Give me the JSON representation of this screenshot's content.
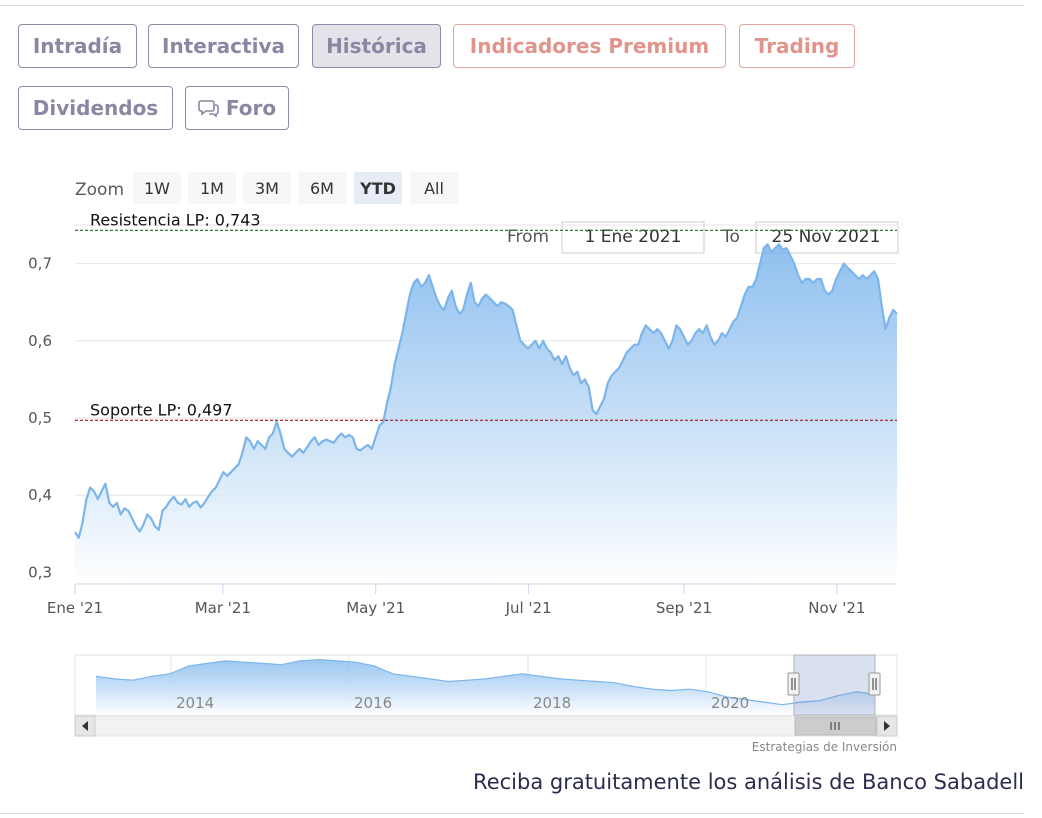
{
  "tabs": [
    {
      "label": "Intradía",
      "state": "normal"
    },
    {
      "label": "Interactiva",
      "state": "normal"
    },
    {
      "label": "Histórica",
      "state": "active"
    },
    {
      "label": "Indicadores Premium",
      "state": "premium"
    },
    {
      "label": "Trading",
      "state": "premium"
    },
    {
      "label": "Dividendos",
      "state": "normal"
    },
    {
      "label": "Foro",
      "state": "normal",
      "icon": "chat-bubbles-icon"
    }
  ],
  "range_selector": {
    "zoom_label": "Zoom",
    "buttons": [
      "1W",
      "1M",
      "3M",
      "6M",
      "YTD",
      "All"
    ],
    "selected": "YTD",
    "from_label": "From",
    "from_value": "1 Ene 2021",
    "to_label": "To",
    "to_value": "25 Nov 2021"
  },
  "chart_data": {
    "type": "area",
    "series": [
      {
        "x_start": "2021-01-01",
        "x_end": "2021-11-25",
        "values": [
          0.352,
          0.345,
          0.365,
          0.395,
          0.41,
          0.405,
          0.395,
          0.405,
          0.415,
          0.39,
          0.385,
          0.39,
          0.375,
          0.383,
          0.38,
          0.37,
          0.36,
          0.353,
          0.362,
          0.375,
          0.37,
          0.36,
          0.355,
          0.38,
          0.385,
          0.393,
          0.398,
          0.39,
          0.388,
          0.395,
          0.385,
          0.39,
          0.392,
          0.384,
          0.39,
          0.398,
          0.405,
          0.41,
          0.42,
          0.43,
          0.425,
          0.43,
          0.435,
          0.44,
          0.455,
          0.475,
          0.47,
          0.46,
          0.47,
          0.465,
          0.46,
          0.475,
          0.48,
          0.495,
          0.48,
          0.46,
          0.455,
          0.45,
          0.455,
          0.46,
          0.455,
          0.462,
          0.47,
          0.475,
          0.465,
          0.47,
          0.472,
          0.47,
          0.468,
          0.475,
          0.48,
          0.475,
          0.478,
          0.475,
          0.46,
          0.458,
          0.462,
          0.465,
          0.46,
          0.475,
          0.49,
          0.495,
          0.52,
          0.54,
          0.57,
          0.59,
          0.61,
          0.635,
          0.66,
          0.675,
          0.68,
          0.67,
          0.675,
          0.685,
          0.67,
          0.655,
          0.645,
          0.64,
          0.655,
          0.665,
          0.645,
          0.635,
          0.64,
          0.66,
          0.675,
          0.65,
          0.645,
          0.655,
          0.66,
          0.655,
          0.65,
          0.645,
          0.65,
          0.648,
          0.645,
          0.64,
          0.62,
          0.6,
          0.595,
          0.59,
          0.595,
          0.6,
          0.59,
          0.6,
          0.59,
          0.585,
          0.575,
          0.58,
          0.57,
          0.58,
          0.565,
          0.555,
          0.56,
          0.545,
          0.55,
          0.54,
          0.51,
          0.505,
          0.515,
          0.525,
          0.545,
          0.555,
          0.56,
          0.565,
          0.575,
          0.585,
          0.59,
          0.595,
          0.595,
          0.61,
          0.62,
          0.615,
          0.61,
          0.615,
          0.61,
          0.6,
          0.59,
          0.6,
          0.62,
          0.615,
          0.605,
          0.595,
          0.6,
          0.61,
          0.615,
          0.61,
          0.62,
          0.605,
          0.595,
          0.6,
          0.61,
          0.605,
          0.615,
          0.625,
          0.63,
          0.645,
          0.66,
          0.67,
          0.67,
          0.68,
          0.7,
          0.72,
          0.725,
          0.715,
          0.72,
          0.725,
          0.718,
          0.72,
          0.71,
          0.7,
          0.685,
          0.675,
          0.68,
          0.68,
          0.675,
          0.68,
          0.68,
          0.665,
          0.66,
          0.665,
          0.68,
          0.69,
          0.7,
          0.695,
          0.69,
          0.685,
          0.68,
          0.685,
          0.68,
          0.685,
          0.69,
          0.68,
          0.645,
          0.615,
          0.63,
          0.64,
          0.635
        ]
      }
    ],
    "xlabel": "",
    "ylabel": "",
    "ylim": [
      0.285,
      0.75
    ],
    "y_ticks": [
      {
        "value": 0.3,
        "label": "0,3"
      },
      {
        "value": 0.4,
        "label": "0,4"
      },
      {
        "value": 0.5,
        "label": "0,5"
      },
      {
        "value": 0.6,
        "label": "0,6"
      },
      {
        "value": 0.7,
        "label": "0,7"
      }
    ],
    "x_ticks": [
      {
        "date": "2021-01-01",
        "label": "Ene '21"
      },
      {
        "date": "2021-03-01",
        "label": "Mar '21"
      },
      {
        "date": "2021-05-01",
        "label": "May '21"
      },
      {
        "date": "2021-07-01",
        "label": "Jul '21"
      },
      {
        "date": "2021-09-01",
        "label": "Sep '21"
      },
      {
        "date": "2021-11-01",
        "label": "Nov '21"
      }
    ],
    "grid": true,
    "plot_lines": [
      {
        "value": 0.743,
        "label": "Resistencia LP: 0,743",
        "color": "#2e7d32",
        "style": "dashed"
      },
      {
        "value": 0.497,
        "label": "Soporte LP: 0,497",
        "color": "#a31515",
        "style": "dashed"
      }
    ],
    "colors": {
      "line": "#7cb5ec",
      "fill_top": "#7cb5ec",
      "fill_bottom": "#ffffff"
    },
    "navigator": {
      "series": [
        0.6,
        0.58,
        0.57,
        0.6,
        0.62,
        0.68,
        0.7,
        0.72,
        0.71,
        0.7,
        0.69,
        0.72,
        0.73,
        0.72,
        0.71,
        0.68,
        0.62,
        0.6,
        0.58,
        0.56,
        0.57,
        0.58,
        0.6,
        0.62,
        0.6,
        0.58,
        0.57,
        0.56,
        0.55,
        0.52,
        0.5,
        0.49,
        0.5,
        0.48,
        0.44,
        0.42,
        0.4,
        0.38,
        0.4,
        0.41,
        0.45,
        0.48,
        0.46
      ],
      "x_labels": [
        "2014",
        "2016",
        "2018",
        "2020"
      ],
      "selected_from": "2021-01-01",
      "selected_to": "2021-11-25"
    }
  },
  "credits": "Estrategias de Inversión",
  "promo_text": "Reciba gratuitamente los análisis de Banco Sabadell"
}
